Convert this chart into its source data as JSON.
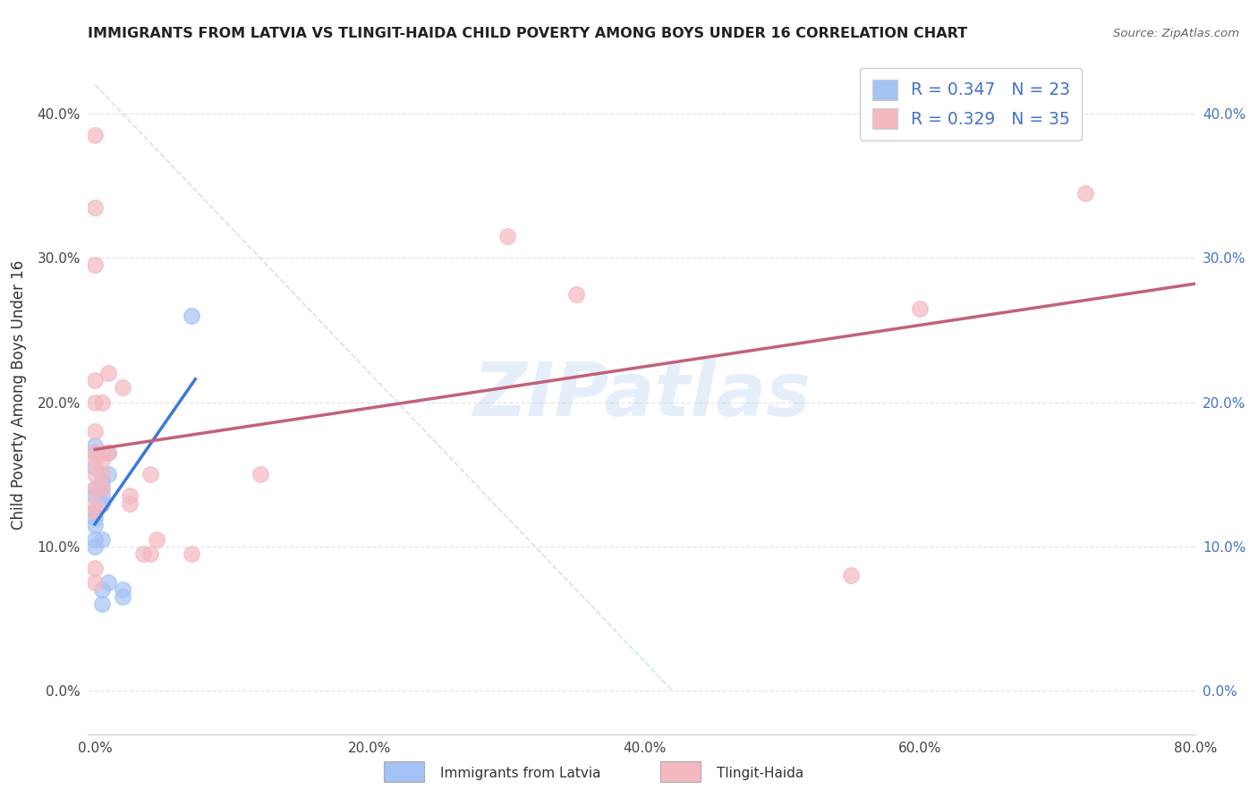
{
  "title": "IMMIGRANTS FROM LATVIA VS TLINGIT-HAIDA CHILD POVERTY AMONG BOYS UNDER 16 CORRELATION CHART",
  "source": "Source: ZipAtlas.com",
  "ylabel": "Child Poverty Among Boys Under 16",
  "xlabel": "",
  "legend_labels": [
    "Immigrants from Latvia",
    "Tlingit-Haida"
  ],
  "legend_R": [
    0.347,
    0.329
  ],
  "legend_N": [
    23,
    35
  ],
  "xlim": [
    -0.005,
    0.8
  ],
  "ylim": [
    -0.03,
    0.44
  ],
  "xticks": [
    0.0,
    0.2,
    0.4,
    0.6,
    0.8
  ],
  "yticks": [
    0.0,
    0.1,
    0.2,
    0.3,
    0.4
  ],
  "xtick_labels": [
    "0.0%",
    "20.0%",
    "40.0%",
    "60.0%",
    "80.0%"
  ],
  "ytick_labels": [
    "0.0%",
    "10.0%",
    "20.0%",
    "30.0%",
    "40.0%"
  ],
  "blue_color": "#a4c2f4",
  "pink_color": "#f4b8c1",
  "blue_line_color": "#3c78d8",
  "pink_line_color": "#c2617a",
  "blue_scatter": [
    [
      0.0,
      0.155
    ],
    [
      0.0,
      0.165
    ],
    [
      0.0,
      0.17
    ],
    [
      0.0,
      0.14
    ],
    [
      0.0,
      0.135
    ],
    [
      0.0,
      0.125
    ],
    [
      0.0,
      0.12
    ],
    [
      0.0,
      0.115
    ],
    [
      0.0,
      0.105
    ],
    [
      0.0,
      0.1
    ],
    [
      0.005,
      0.145
    ],
    [
      0.005,
      0.14
    ],
    [
      0.005,
      0.135
    ],
    [
      0.005,
      0.13
    ],
    [
      0.005,
      0.105
    ],
    [
      0.005,
      0.07
    ],
    [
      0.005,
      0.06
    ],
    [
      0.01,
      0.165
    ],
    [
      0.01,
      0.15
    ],
    [
      0.01,
      0.075
    ],
    [
      0.02,
      0.07
    ],
    [
      0.02,
      0.065
    ],
    [
      0.07,
      0.26
    ]
  ],
  "pink_scatter": [
    [
      0.0,
      0.385
    ],
    [
      0.0,
      0.335
    ],
    [
      0.0,
      0.295
    ],
    [
      0.0,
      0.215
    ],
    [
      0.0,
      0.2
    ],
    [
      0.0,
      0.18
    ],
    [
      0.0,
      0.165
    ],
    [
      0.0,
      0.16
    ],
    [
      0.0,
      0.15
    ],
    [
      0.0,
      0.14
    ],
    [
      0.0,
      0.13
    ],
    [
      0.0,
      0.125
    ],
    [
      0.0,
      0.085
    ],
    [
      0.0,
      0.075
    ],
    [
      0.005,
      0.2
    ],
    [
      0.005,
      0.165
    ],
    [
      0.005,
      0.16
    ],
    [
      0.005,
      0.15
    ],
    [
      0.005,
      0.14
    ],
    [
      0.01,
      0.22
    ],
    [
      0.01,
      0.165
    ],
    [
      0.02,
      0.21
    ],
    [
      0.025,
      0.135
    ],
    [
      0.025,
      0.13
    ],
    [
      0.035,
      0.095
    ],
    [
      0.04,
      0.095
    ],
    [
      0.04,
      0.15
    ],
    [
      0.045,
      0.105
    ],
    [
      0.07,
      0.095
    ],
    [
      0.12,
      0.15
    ],
    [
      0.3,
      0.315
    ],
    [
      0.35,
      0.275
    ],
    [
      0.55,
      0.08
    ],
    [
      0.6,
      0.265
    ],
    [
      0.72,
      0.345
    ]
  ],
  "watermark": "ZIPatlas",
  "background_color": "#ffffff",
  "grid_color": "#dddddd",
  "title_color": "#222222",
  "axis_label_color": "#333333",
  "tick_color": "#444444",
  "right_tick_color": "#4472c4",
  "legend_text_color": "#4472c4"
}
